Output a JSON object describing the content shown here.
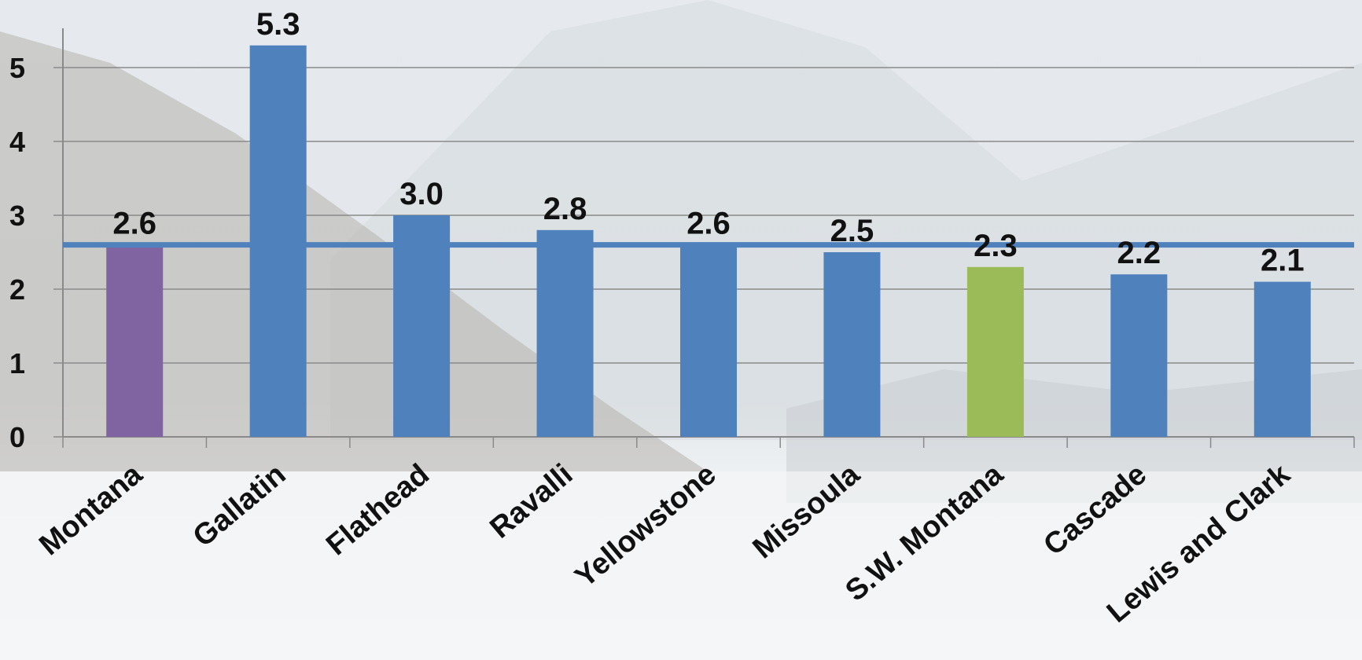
{
  "chart_data": {
    "type": "bar",
    "title": "",
    "xlabel": "",
    "ylabel": "",
    "categories": [
      "Montana",
      "Gallatin",
      "Flathead",
      "Ravalli",
      "Yellowstone",
      "Missoula",
      "S.W. Montana",
      "Cascade",
      "Lewis and Clark"
    ],
    "values": [
      2.6,
      5.3,
      3.0,
      2.8,
      2.6,
      2.5,
      2.3,
      2.2,
      2.1
    ],
    "value_labels": [
      "2.6",
      "5.3",
      "3.0",
      "2.8",
      "2.6",
      "2.5",
      "2.3",
      "2.2",
      "2.1"
    ],
    "bar_colors": [
      "#8064A2",
      "#4F81BD",
      "#4F81BD",
      "#4F81BD",
      "#4F81BD",
      "#4F81BD",
      "#9BBB59",
      "#4F81BD",
      "#4F81BD"
    ],
    "ylim": [
      0,
      5.3
    ],
    "yticks": [
      "0",
      "1",
      "2",
      "3",
      "4",
      "5"
    ],
    "reference_line": {
      "value": 2.6,
      "color": "#4F81BD"
    },
    "grid": true,
    "legend": "none"
  }
}
